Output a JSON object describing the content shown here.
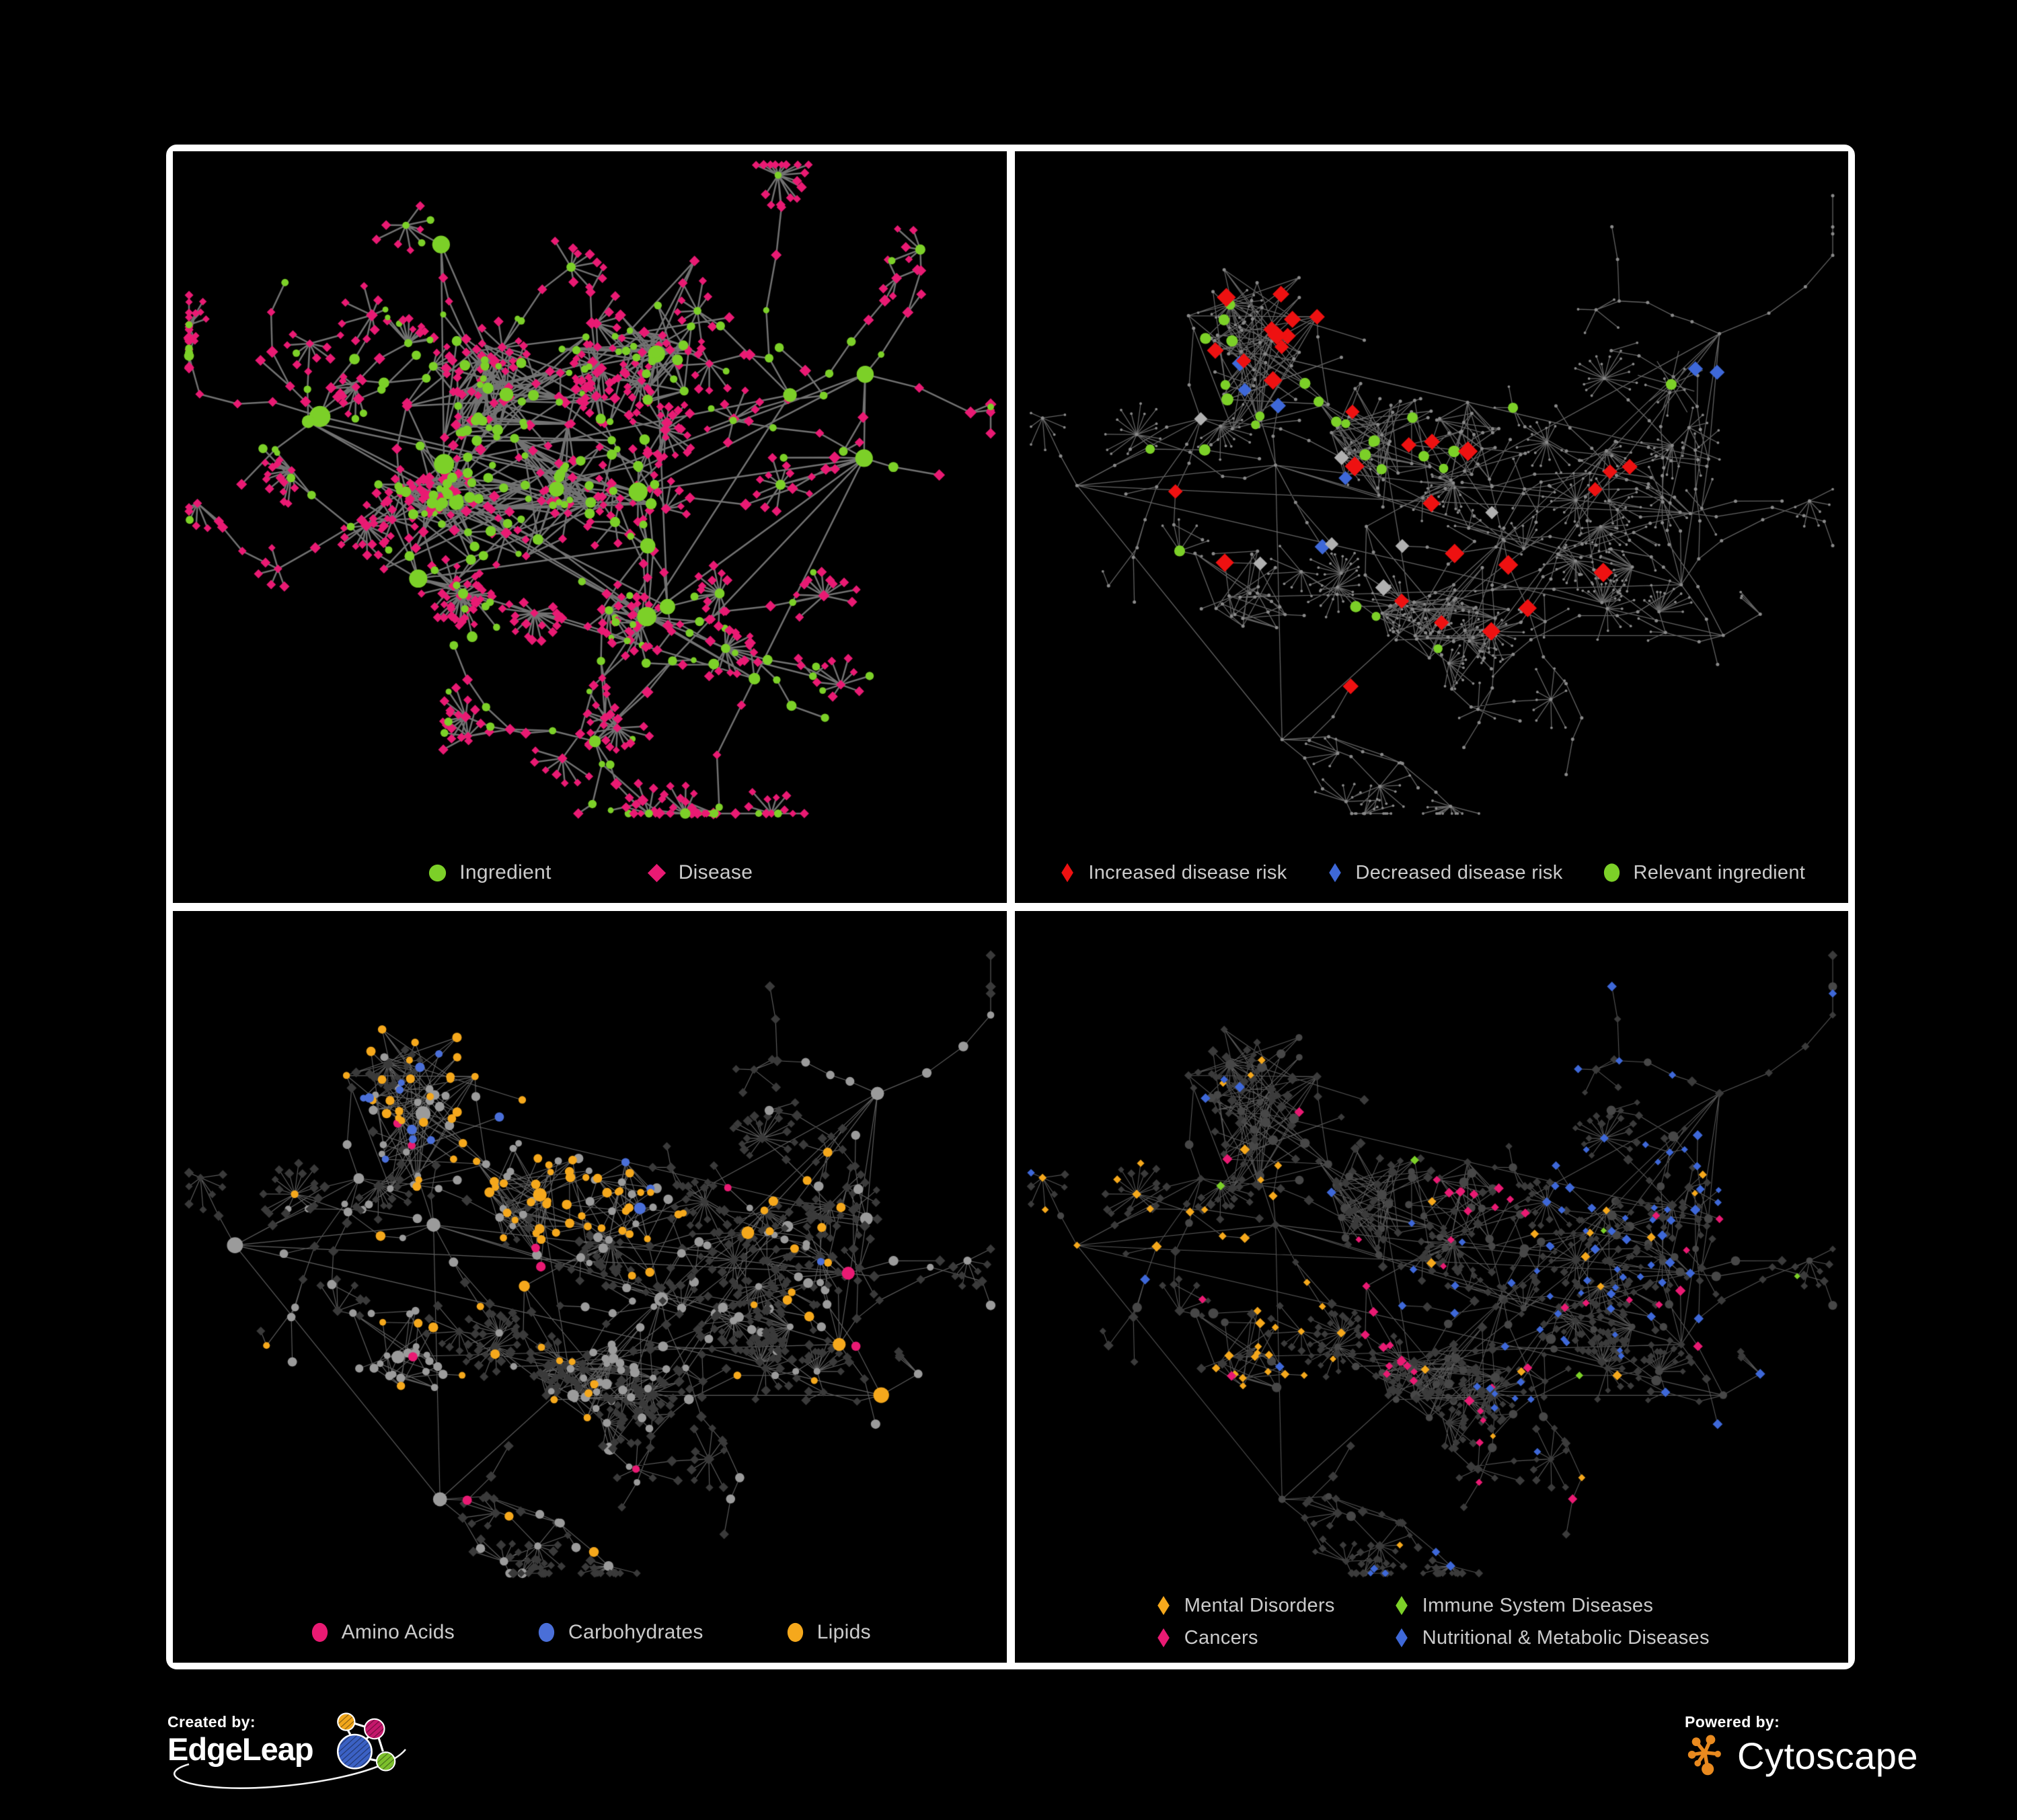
{
  "branding": {
    "created_by": "Created by:",
    "edgeleap": "EdgeLeap",
    "powered_by": "Powered by:",
    "cytoscape": "Cytoscape"
  },
  "panels": [
    {
      "legend": [
        {
          "label": "Ingredient",
          "shape": "circle",
          "color": "#7CD028"
        },
        {
          "label": "Disease",
          "shape": "diamond",
          "color": "#E91A73"
        }
      ]
    },
    {
      "legend": [
        {
          "label": "Increased disease risk",
          "shape": "diamond",
          "color": "#EE1111"
        },
        {
          "label": "Decreased disease risk",
          "shape": "diamond",
          "color": "#3E68D8"
        },
        {
          "label": "Relevant ingredient",
          "shape": "circle",
          "color": "#7CD028"
        }
      ]
    },
    {
      "legend": [
        {
          "label": "Amino Acids",
          "shape": "circle",
          "color": "#E91A73"
        },
        {
          "label": "Carbohydrates",
          "shape": "circle",
          "color": "#4A6FD8"
        },
        {
          "label": "Lipids",
          "shape": "circle",
          "color": "#F5A81C"
        }
      ]
    },
    {
      "legend": [
        {
          "label": "Mental Disorders",
          "shape": "diamond",
          "color": "#F5A81C"
        },
        {
          "label": "Immune System Diseases",
          "shape": "diamond",
          "color": "#7CD028"
        },
        {
          "label": "Cancers",
          "shape": "diamond",
          "color": "#E91A73"
        },
        {
          "label": "Nutritional & Metabolic Diseases",
          "shape": "diamond",
          "color": "#3E68D8"
        }
      ]
    }
  ],
  "graph_style": {
    "background": "#000000",
    "legend_text_color": "#CBCBCB",
    "panel_border_color": "#FFFFFF",
    "edge_color_p1": "#787878",
    "edge_color_p2": "#6E6E6E",
    "edge_color_p34": "#9A9A9A",
    "skeleton_node_gray": "#8A8A8A",
    "neutral_circle_gray_p3": "#9B9B9B",
    "dark_diamond_p3": "#3A3A3A",
    "dark_diamond_p4": "#3B3B3B",
    "dark_circle_p4": "#474747",
    "highlight_gray_diamond_p2": "#B0B0B0",
    "edgeleap_logo_colors": {
      "orange": "#F2A71B",
      "magenta": "#C4176B",
      "blue": "#3B61C4",
      "green": "#7CC02C"
    },
    "cytoscape_orange": "#E98A1F"
  }
}
